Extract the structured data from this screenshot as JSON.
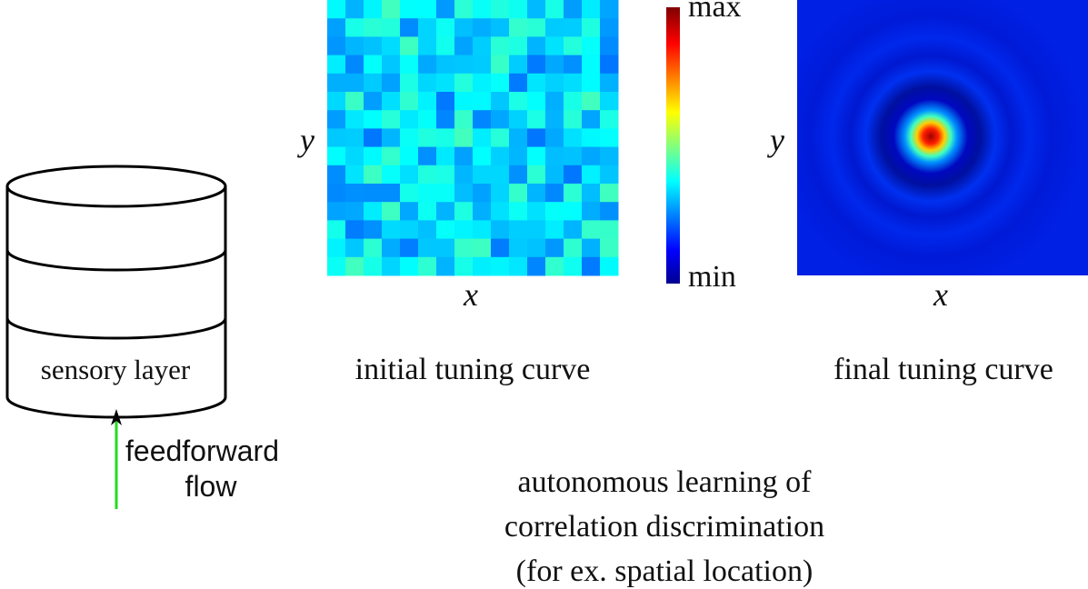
{
  "cylinder": {
    "label": "sensory layer"
  },
  "arrow": {
    "label": [
      "feedforward",
      "flow"
    ]
  },
  "panels": [
    {
      "title": "initial tuning curve",
      "x_label": "x",
      "y_label": "y"
    },
    {
      "title": "final tuning curve",
      "x_label": "x",
      "y_label": "y"
    }
  ],
  "colorbar": {
    "max_label": "max",
    "min_label": "min"
  },
  "caption": [
    "autonomous learning of",
    "correlation discrimination",
    "(for ex. spatial location)"
  ]
}
